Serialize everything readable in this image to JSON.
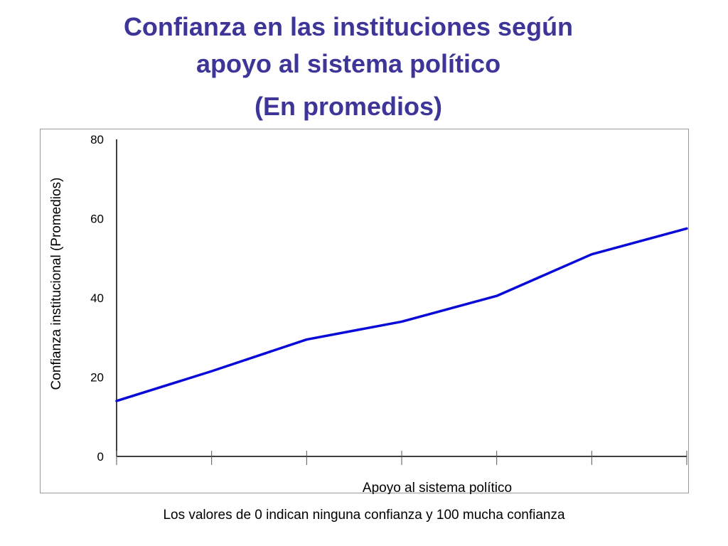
{
  "slide": {
    "title_line1": "Confianza en las instituciones según",
    "title_line2": "apoyo al sistema político",
    "subtitle": "(En promedios)",
    "footnote": "Los valores de 0 indican ninguna confianza y 100 mucha confianza"
  },
  "chart_data": {
    "type": "line",
    "title": "",
    "xlabel": "Apoyo al sistema político",
    "ylabel": "Confianza institucional (Promedios)",
    "x": [
      1,
      2,
      3,
      4,
      5,
      6,
      7
    ],
    "y_ticks": [
      0,
      20,
      40,
      60,
      80
    ],
    "ylim": [
      0,
      80
    ],
    "grid": false,
    "colors": {
      "line": "#0a0ad8",
      "axis": "#000000"
    },
    "series": [
      {
        "values": [
          14,
          21.5,
          29.5,
          34,
          40.5,
          51,
          57.5
        ]
      }
    ]
  }
}
